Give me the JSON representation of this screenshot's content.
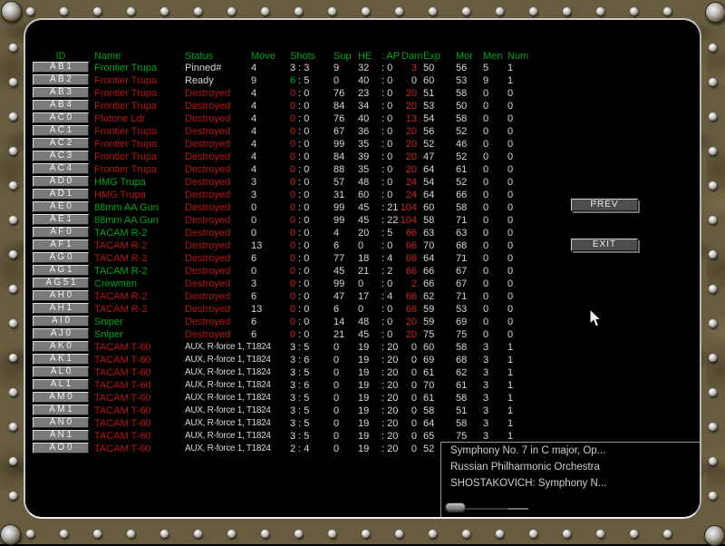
{
  "colors": {
    "header_green": "#00a41c",
    "green": "#00a41c",
    "red": "#b81414",
    "bright_red": "#cc2626",
    "white": "#d8d8d8"
  },
  "table": {
    "headers": {
      "id": "ID",
      "name": "Name",
      "status": "Status",
      "move": "Move",
      "shots": "Shots",
      "sup": "Sup",
      "he": "HE",
      "ap": ": AP",
      "dam": "Dam",
      "exp": "Exp",
      "mor": "Mor",
      "men": "Men",
      "num": "Num"
    },
    "rows": [
      {
        "id": "A B 1",
        "name": "Frontier Trupa",
        "name_color": "green",
        "status": "Pinned#",
        "status_color": "white",
        "move": "4",
        "shots1": "3",
        "shots1_color": "white",
        "shots2": " : 3",
        "sup": "9",
        "he": "32",
        "ap": ": 0",
        "dam": "3",
        "dam_color": "bright_red",
        "exp": "50",
        "mor": "56",
        "men": "5",
        "num": "1"
      },
      {
        "id": "A B 2",
        "name": "Frontier Trupa",
        "name_color": "red",
        "status": "Ready",
        "status_color": "white",
        "move": "9",
        "shots1": "6",
        "shots1_color": "green",
        "shots2": " : 5",
        "sup": "0",
        "he": "40",
        "ap": ": 0",
        "dam": "0",
        "dam_color": "white",
        "exp": "60",
        "mor": "53",
        "men": "9",
        "num": "1"
      },
      {
        "id": "A B 3",
        "name": "Frontier Trupa",
        "name_color": "red",
        "status": "Destroyed",
        "status_color": "red",
        "move": "4",
        "shots1": "0",
        "shots1_color": "bright_red",
        "shots2": " : 0",
        "sup": "76",
        "he": "23",
        "ap": ": 0",
        "dam": "20",
        "dam_color": "bright_red",
        "exp": "51",
        "mor": "58",
        "men": "0",
        "num": "0"
      },
      {
        "id": "A B 4",
        "name": "Frontier Trupa",
        "name_color": "red",
        "status": "Destroyed",
        "status_color": "red",
        "move": "4",
        "shots1": "0",
        "shots1_color": "bright_red",
        "shots2": " : 0",
        "sup": "84",
        "he": "34",
        "ap": ": 0",
        "dam": "20",
        "dam_color": "bright_red",
        "exp": "53",
        "mor": "50",
        "men": "0",
        "num": "0"
      },
      {
        "id": "A C 0",
        "name": "Plutone Ldr",
        "name_color": "red",
        "status": "Destroyed",
        "status_color": "red",
        "move": "4",
        "shots1": "0",
        "shots1_color": "bright_red",
        "shots2": " : 0",
        "sup": "76",
        "he": "40",
        "ap": ": 0",
        "dam": "13",
        "dam_color": "bright_red",
        "exp": "54",
        "mor": "58",
        "men": "0",
        "num": "0"
      },
      {
        "id": "A C 1",
        "name": "Frontier Trupa",
        "name_color": "red",
        "status": "Destroyed",
        "status_color": "red",
        "move": "4",
        "shots1": "0",
        "shots1_color": "bright_red",
        "shots2": " : 0",
        "sup": "67",
        "he": "36",
        "ap": ": 0",
        "dam": "20",
        "dam_color": "bright_red",
        "exp": "56",
        "mor": "52",
        "men": "0",
        "num": "0"
      },
      {
        "id": "A C 2",
        "name": "Frontier Trupa",
        "name_color": "red",
        "status": "Destroyed",
        "status_color": "red",
        "move": "4",
        "shots1": "0",
        "shots1_color": "bright_red",
        "shots2": " : 0",
        "sup": "99",
        "he": "35",
        "ap": ": 0",
        "dam": "20",
        "dam_color": "bright_red",
        "exp": "52",
        "mor": "46",
        "men": "0",
        "num": "0"
      },
      {
        "id": "A C 3",
        "name": "Frontier Trupa",
        "name_color": "red",
        "status": "Destroyed",
        "status_color": "red",
        "move": "4",
        "shots1": "0",
        "shots1_color": "bright_red",
        "shots2": " : 0",
        "sup": "84",
        "he": "39",
        "ap": ": 0",
        "dam": "20",
        "dam_color": "bright_red",
        "exp": "47",
        "mor": "52",
        "men": "0",
        "num": "0"
      },
      {
        "id": "A C 4",
        "name": "Frontier Trupa",
        "name_color": "red",
        "status": "Destroyed",
        "status_color": "red",
        "move": "4",
        "shots1": "0",
        "shots1_color": "bright_red",
        "shots2": " : 0",
        "sup": "88",
        "he": "35",
        "ap": ": 0",
        "dam": "20",
        "dam_color": "bright_red",
        "exp": "64",
        "mor": "61",
        "men": "0",
        "num": "0"
      },
      {
        "id": "A D 0",
        "name": "HMG Trupa",
        "name_color": "green",
        "status": "Destroyed",
        "status_color": "red",
        "move": "3",
        "shots1": "0",
        "shots1_color": "bright_red",
        "shots2": " : 0",
        "sup": "57",
        "he": "48",
        "ap": ": 0",
        "dam": "24",
        "dam_color": "bright_red",
        "exp": "54",
        "mor": "52",
        "men": "0",
        "num": "0"
      },
      {
        "id": "A D 1",
        "name": "HMG Trupa",
        "name_color": "red",
        "status": "Destroyed",
        "status_color": "red",
        "move": "3",
        "shots1": "0",
        "shots1_color": "bright_red",
        "shots2": " : 0",
        "sup": "31",
        "he": "60",
        "ap": ": 0",
        "dam": "24",
        "dam_color": "bright_red",
        "exp": "64",
        "mor": "66",
        "men": "0",
        "num": "0"
      },
      {
        "id": "A E 0",
        "name": "88mm AA Gun",
        "name_color": "green",
        "status": "Destroyed",
        "status_color": "red",
        "move": "0",
        "shots1": "0",
        "shots1_color": "bright_red",
        "shots2": " : 0",
        "sup": "99",
        "he": "45",
        "ap": ": 21",
        "dam": "104",
        "dam_color": "bright_red",
        "exp": "60",
        "mor": "58",
        "men": "0",
        "num": "0"
      },
      {
        "id": "A E 1",
        "name": "88mm AA Gun",
        "name_color": "green",
        "status": "Destroyed",
        "status_color": "red",
        "move": "0",
        "shots1": "0",
        "shots1_color": "bright_red",
        "shots2": " : 0",
        "sup": "99",
        "he": "45",
        "ap": ": 22",
        "dam": "104",
        "dam_color": "bright_red",
        "exp": "58",
        "mor": "71",
        "men": "0",
        "num": "0"
      },
      {
        "id": "A F 0",
        "name": "TACAM R-2",
        "name_color": "green",
        "status": "Destroyed",
        "status_color": "red",
        "move": "0",
        "shots1": "0",
        "shots1_color": "bright_red",
        "shots2": " : 0",
        "sup": "4",
        "he": "20",
        "ap": ": 5",
        "dam": "66",
        "dam_color": "bright_red",
        "exp": "63",
        "mor": "63",
        "men": "0",
        "num": "0"
      },
      {
        "id": "A F 1",
        "name": "TACAM R-2",
        "name_color": "red",
        "status": "Destroyed",
        "status_color": "red",
        "move": "13",
        "shots1": "0",
        "shots1_color": "bright_red",
        "shots2": " : 0",
        "sup": "6",
        "he": "0",
        "ap": ": 0",
        "dam": "66",
        "dam_color": "bright_red",
        "exp": "70",
        "mor": "68",
        "men": "0",
        "num": "0"
      },
      {
        "id": "A G 0",
        "name": "TACAM R-2",
        "name_color": "red",
        "status": "Destroyed",
        "status_color": "red",
        "move": "6",
        "shots1": "0",
        "shots1_color": "bright_red",
        "shots2": " : 0",
        "sup": "77",
        "he": "18",
        "ap": ": 4",
        "dam": "66",
        "dam_color": "bright_red",
        "exp": "64",
        "mor": "71",
        "men": "0",
        "num": "0"
      },
      {
        "id": "A G 1",
        "name": "TACAM R-2",
        "name_color": "green",
        "status": "Destroyed",
        "status_color": "red",
        "move": "0",
        "shots1": "0",
        "shots1_color": "bright_red",
        "shots2": " : 0",
        "sup": "45",
        "he": "21",
        "ap": ": 2",
        "dam": "66",
        "dam_color": "bright_red",
        "exp": "66",
        "mor": "67",
        "men": "0",
        "num": "0"
      },
      {
        "id": "A G 5 1",
        "name": "Crewmen",
        "name_color": "green",
        "status": "Destroyed",
        "status_color": "red",
        "move": "3",
        "shots1": "0",
        "shots1_color": "bright_red",
        "shots2": " : 0",
        "sup": "99",
        "he": "0",
        "ap": ": 0",
        "dam": "2",
        "dam_color": "bright_red",
        "exp": "66",
        "mor": "67",
        "men": "0",
        "num": "0"
      },
      {
        "id": "A H 0",
        "name": "TACAM R-2",
        "name_color": "red",
        "status": "Destroyed",
        "status_color": "red",
        "move": "6",
        "shots1": "0",
        "shots1_color": "bright_red",
        "shots2": " : 0",
        "sup": "47",
        "he": "17",
        "ap": ": 4",
        "dam": "66",
        "dam_color": "bright_red",
        "exp": "62",
        "mor": "71",
        "men": "0",
        "num": "0"
      },
      {
        "id": "A H 1",
        "name": "TACAM R-2",
        "name_color": "red",
        "status": "Destroyed",
        "status_color": "red",
        "move": "13",
        "shots1": "0",
        "shots1_color": "bright_red",
        "shots2": " : 0",
        "sup": "6",
        "he": "0",
        "ap": ": 0",
        "dam": "66",
        "dam_color": "bright_red",
        "exp": "59",
        "mor": "53",
        "men": "0",
        "num": "0"
      },
      {
        "id": "A I 0",
        "name": "Sniper",
        "name_color": "green",
        "status": "Destroyed",
        "status_color": "red",
        "move": "6",
        "shots1": "0",
        "shots1_color": "bright_red",
        "shots2": " : 0",
        "sup": "14",
        "he": "48",
        "ap": ": 0",
        "dam": "20",
        "dam_color": "bright_red",
        "exp": "59",
        "mor": "69",
        "men": "0",
        "num": "0"
      },
      {
        "id": "A J 0",
        "name": "Sniper",
        "name_color": "green",
        "status": "Destroyed",
        "status_color": "red",
        "move": "6",
        "shots1": "0",
        "shots1_color": "bright_red",
        "shots2": " : 0",
        "sup": "21",
        "he": "45",
        "ap": ": 0",
        "dam": "20",
        "dam_color": "bright_red",
        "exp": "75",
        "mor": "75",
        "men": "0",
        "num": "0"
      },
      {
        "id": "A K 0",
        "name": "TACAM T-60",
        "name_color": "red",
        "status": "AUX, R-force 1, T1824",
        "status_color": "white",
        "move": "",
        "shots1": "3",
        "shots1_color": "white",
        "shots2": " : 5",
        "sup": "0",
        "he": "19",
        "ap": ": 20",
        "dam": "0",
        "dam_color": "white",
        "exp": "60",
        "mor": "58",
        "men": "3",
        "num": "1"
      },
      {
        "id": "A K 1",
        "name": "TACAM T-60",
        "name_color": "red",
        "status": "AUX, R-force 1, T1824",
        "status_color": "white",
        "move": "",
        "shots1": "3",
        "shots1_color": "white",
        "shots2": " : 6",
        "sup": "0",
        "he": "19",
        "ap": ": 20",
        "dam": "0",
        "dam_color": "white",
        "exp": "69",
        "mor": "68",
        "men": "3",
        "num": "1"
      },
      {
        "id": "A L 0",
        "name": "TACAM T-60",
        "name_color": "red",
        "status": "AUX, R-force 1, T1824",
        "status_color": "white",
        "move": "",
        "shots1": "3",
        "shots1_color": "white",
        "shots2": " : 5",
        "sup": "0",
        "he": "19",
        "ap": ": 20",
        "dam": "0",
        "dam_color": "white",
        "exp": "61",
        "mor": "62",
        "men": "3",
        "num": "1"
      },
      {
        "id": "A L 1",
        "name": "TACAM T-60",
        "name_color": "red",
        "status": "AUX, R-force 1, T1824",
        "status_color": "white",
        "move": "",
        "shots1": "3",
        "shots1_color": "white",
        "shots2": " : 6",
        "sup": "0",
        "he": "19",
        "ap": ": 20",
        "dam": "0",
        "dam_color": "white",
        "exp": "70",
        "mor": "61",
        "men": "3",
        "num": "1"
      },
      {
        "id": "A M 0",
        "name": "TACAM T-60",
        "name_color": "red",
        "status": "AUX, R-force 1, T1824",
        "status_color": "white",
        "move": "",
        "shots1": "3",
        "shots1_color": "white",
        "shots2": " : 5",
        "sup": "0",
        "he": "19",
        "ap": ": 20",
        "dam": "0",
        "dam_color": "white",
        "exp": "61",
        "mor": "58",
        "men": "3",
        "num": "1"
      },
      {
        "id": "A M 1",
        "name": "TACAM T-60",
        "name_color": "red",
        "status": "AUX, R-force 1, T1824",
        "status_color": "white",
        "move": "",
        "shots1": "3",
        "shots1_color": "white",
        "shots2": " : 5",
        "sup": "0",
        "he": "19",
        "ap": ": 20",
        "dam": "0",
        "dam_color": "white",
        "exp": "58",
        "mor": "51",
        "men": "3",
        "num": "1"
      },
      {
        "id": "A N 0",
        "name": "TACAM T-60",
        "name_color": "red",
        "status": "AUX, R-force 1, T1824",
        "status_color": "white",
        "move": "",
        "shots1": "3",
        "shots1_color": "white",
        "shots2": " : 5",
        "sup": "0",
        "he": "19",
        "ap": ": 20",
        "dam": "0",
        "dam_color": "white",
        "exp": "64",
        "mor": "58",
        "men": "3",
        "num": "1"
      },
      {
        "id": "A N 1",
        "name": "TACAM T-60",
        "name_color": "red",
        "status": "AUX, R-force 1, T1824",
        "status_color": "white",
        "move": "",
        "shots1": "3",
        "shots1_color": "white",
        "shots2": " : 5",
        "sup": "0",
        "he": "19",
        "ap": ": 20",
        "dam": "0",
        "dam_color": "white",
        "exp": "65",
        "mor": "75",
        "men": "3",
        "num": "1"
      },
      {
        "id": "A O 0",
        "name": "TACAM T-60",
        "name_color": "red",
        "status": "AUX, R-force 1, T1824",
        "status_color": "white",
        "move": "",
        "shots1": "2",
        "shots1_color": "white",
        "shots2": " : 4",
        "sup": "0",
        "he": "19",
        "ap": ": 20",
        "dam": "0",
        "dam_color": "white",
        "exp": "52",
        "mor": "",
        "men": "",
        "num": ""
      }
    ]
  },
  "buttons": {
    "prev": "PREV",
    "exit": "EXIT"
  },
  "media": {
    "lines": [
      "Symphony No. 7 in C major, Op...",
      "Russian Philharmonic Orchestra",
      "SHOSTAKOVICH: Symphony N..."
    ]
  }
}
